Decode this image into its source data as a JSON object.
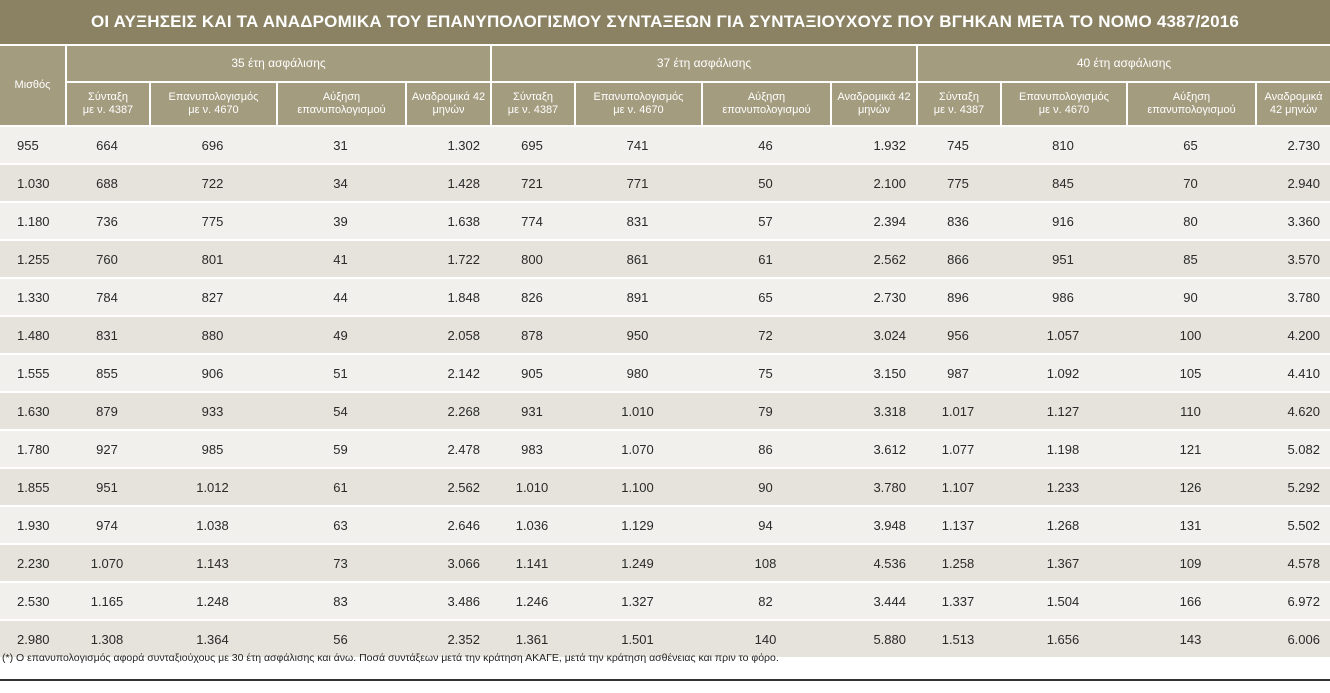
{
  "title": "ΟΙ ΑΥΞΗΣΕΙΣ ΚΑΙ ΤΑ ΑΝΑΔΡΟΜΙΚΑ ΤΟΥ ΕΠΑΝΥΠΟΛΟΓΙΣΜΟΥ ΣΥΝΤΑΞΕΩΝ ΓΙΑ ΣΥΝΤΑΞΙΟΥΧΟΥΣ ΠΟΥ ΒΓΗΚΑΝ ΜΕΤΑ ΤΟ ΝΟΜΟ 4387/2016",
  "table": {
    "first_header": "Μισθός",
    "groups": [
      "35 έτη ασφάλισης",
      "37 έτη ασφάλισης",
      "40 έτη ασφάλισης"
    ],
    "sub_headers": [
      {
        "l1": "Σύνταξη",
        "l2": "με ν. 4387"
      },
      {
        "l1": "Επανυπολογισμός",
        "l2": "με ν. 4670"
      },
      {
        "l1": "Αύξηση",
        "l2": "επανυπολογισμού"
      },
      {
        "l1": "Αναδρομικά 42",
        "l2": "μηνών"
      },
      {
        "l1": "Σύνταξη",
        "l2": "με ν. 4387"
      },
      {
        "l1": "Επανυπολογισμός",
        "l2": "με ν. 4670"
      },
      {
        "l1": "Αύξηση",
        "l2": "επανυπολογισμού"
      },
      {
        "l1": "Αναδρομικά 42",
        "l2": "μηνών"
      },
      {
        "l1": "Σύνταξη",
        "l2": "με ν. 4387"
      },
      {
        "l1": "Επανυπολογισμός",
        "l2": "με ν. 4670"
      },
      {
        "l1": "Αύξηση",
        "l2": "επανυπολογισμού"
      },
      {
        "l1": "Αναδρομικά",
        "l2": "42 μηνών"
      }
    ],
    "rows": [
      [
        "955",
        "664",
        "696",
        "31",
        "1.302",
        "695",
        "741",
        "46",
        "1.932",
        "745",
        "810",
        "65",
        "2.730"
      ],
      [
        "1.030",
        "688",
        "722",
        "34",
        "1.428",
        "721",
        "771",
        "50",
        "2.100",
        "775",
        "845",
        "70",
        "2.940"
      ],
      [
        "1.180",
        "736",
        "775",
        "39",
        "1.638",
        "774",
        "831",
        "57",
        "2.394",
        "836",
        "916",
        "80",
        "3.360"
      ],
      [
        "1.255",
        "760",
        "801",
        "41",
        "1.722",
        "800",
        "861",
        "61",
        "2.562",
        "866",
        "951",
        "85",
        "3.570"
      ],
      [
        "1.330",
        "784",
        "827",
        "44",
        "1.848",
        "826",
        "891",
        "65",
        "2.730",
        "896",
        "986",
        "90",
        "3.780"
      ],
      [
        "1.480",
        "831",
        "880",
        "49",
        "2.058",
        "878",
        "950",
        "72",
        "3.024",
        "956",
        "1.057",
        "100",
        "4.200"
      ],
      [
        "1.555",
        "855",
        "906",
        "51",
        "2.142",
        "905",
        "980",
        "75",
        "3.150",
        "987",
        "1.092",
        "105",
        "4.410"
      ],
      [
        "1.630",
        "879",
        "933",
        "54",
        "2.268",
        "931",
        "1.010",
        "79",
        "3.318",
        "1.017",
        "1.127",
        "110",
        "4.620"
      ],
      [
        "1.780",
        "927",
        "985",
        "59",
        "2.478",
        "983",
        "1.070",
        "86",
        "3.612",
        "1.077",
        "1.198",
        "121",
        "5.082"
      ],
      [
        "1.855",
        "951",
        "1.012",
        "61",
        "2.562",
        "1.010",
        "1.100",
        "90",
        "3.780",
        "1.107",
        "1.233",
        "126",
        "5.292"
      ],
      [
        "1.930",
        "974",
        "1.038",
        "63",
        "2.646",
        "1.036",
        "1.129",
        "94",
        "3.948",
        "1.137",
        "1.268",
        "131",
        "5.502"
      ],
      [
        "2.230",
        "1.070",
        "1.143",
        "73",
        "3.066",
        "1.141",
        "1.249",
        "108",
        "4.536",
        "1.258",
        "1.367",
        "109",
        "4.578"
      ],
      [
        "2.530",
        "1.165",
        "1.248",
        "83",
        "3.486",
        "1.246",
        "1.327",
        "82",
        "3.444",
        "1.337",
        "1.504",
        "166",
        "6.972"
      ],
      [
        "2.980",
        "1.308",
        "1.364",
        "56",
        "2.352",
        "1.361",
        "1.501",
        "140",
        "5.880",
        "1.513",
        "1.656",
        "143",
        "6.006"
      ]
    ]
  },
  "footnote": "(*) Ο επανυπολογισμός αφορά συνταξιούχους με 30 έτη ασφάλισης και άνω. Ποσά συντάξεων μετά την κράτηση ΑΚΑΓΕ, μετά την κράτηση ασθένειας και πριν το φόρο.",
  "colors": {
    "title_bg": "#8a8262",
    "header_bg": "#a49c7f",
    "row_light": "#f1f0ec",
    "row_dark": "#e5e3dc"
  }
}
